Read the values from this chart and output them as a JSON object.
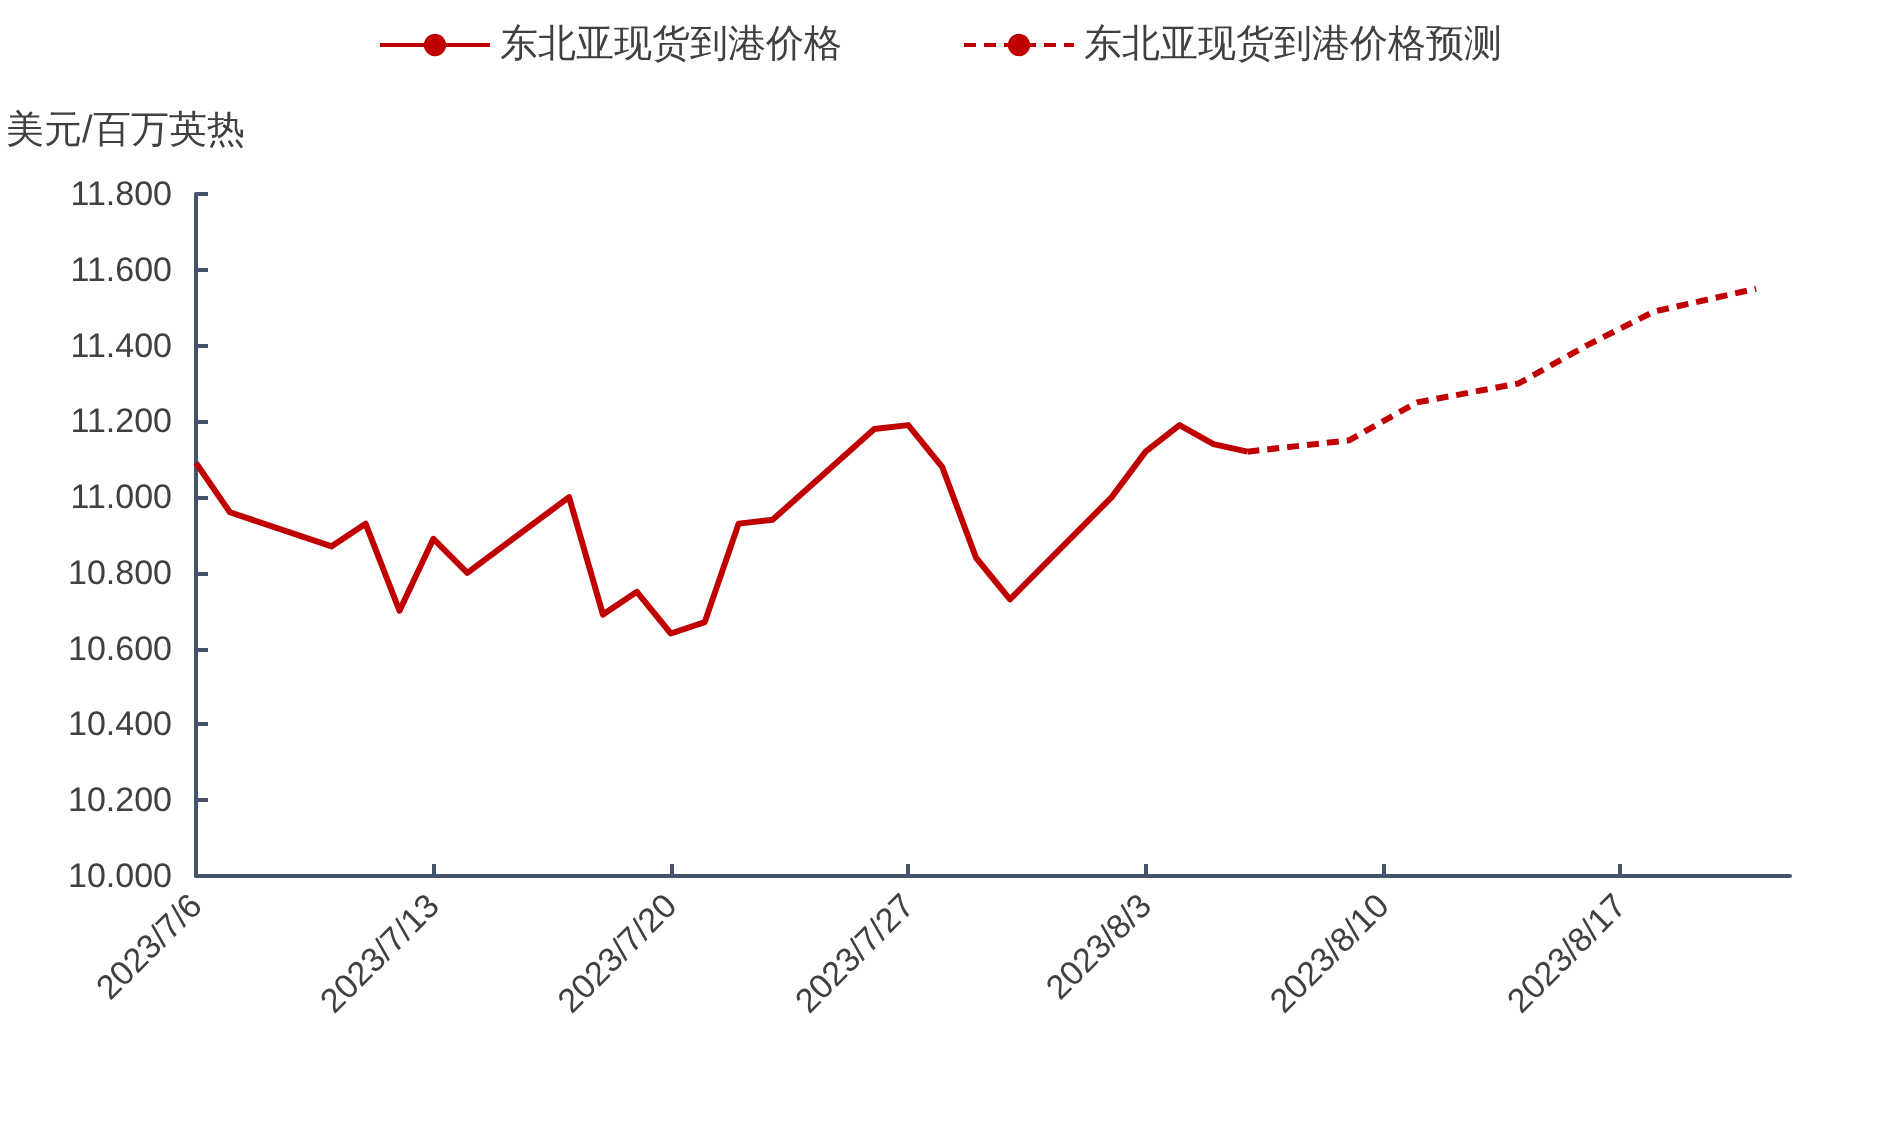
{
  "chart_data": {
    "type": "line",
    "ylabel": "美元/百万英热",
    "legend": "top",
    "grid": false,
    "marker": "none",
    "xlim": [
      "2023-07-06",
      "2023-08-22"
    ],
    "xticks": [
      {
        "value": "2023-07-06",
        "label": "2023/7/6"
      },
      {
        "value": "2023-07-13",
        "label": "2023/7/13"
      },
      {
        "value": "2023-07-20",
        "label": "2023/7/20"
      },
      {
        "value": "2023-07-27",
        "label": "2023/7/27"
      },
      {
        "value": "2023-08-03",
        "label": "2023/8/3"
      },
      {
        "value": "2023-08-10",
        "label": "2023/8/10"
      },
      {
        "value": "2023-08-17",
        "label": "2023/8/17"
      }
    ],
    "ylim": [
      10,
      11.8
    ],
    "yticks": [
      {
        "value": 10,
        "label": "10.000"
      },
      {
        "value": 10.2,
        "label": "10.200"
      },
      {
        "value": 10.4,
        "label": "10.400"
      },
      {
        "value": 10.6,
        "label": "10.600"
      },
      {
        "value": 10.8,
        "label": "10.800"
      },
      {
        "value": 11,
        "label": "11.000"
      },
      {
        "value": 11.2,
        "label": "11.200"
      },
      {
        "value": 11.4,
        "label": "11.400"
      },
      {
        "value": 11.6,
        "label": "11.600"
      },
      {
        "value": 11.8,
        "label": "11.800"
      }
    ],
    "series": [
      {
        "name": "东北亚现货到港价格",
        "color": "#c00000",
        "line_style": "solid",
        "x": [
          "2023-07-06",
          "2023-07-07",
          "2023-07-10",
          "2023-07-11",
          "2023-07-12",
          "2023-07-13",
          "2023-07-14",
          "2023-07-17",
          "2023-07-18",
          "2023-07-19",
          "2023-07-20",
          "2023-07-21",
          "2023-07-22",
          "2023-07-23",
          "2023-07-26",
          "2023-07-27",
          "2023-07-28",
          "2023-07-29",
          "2023-07-30",
          "2023-08-02",
          "2023-08-03",
          "2023-08-04",
          "2023-08-05",
          "2023-08-06"
        ],
        "values": [
          11.09,
          10.96,
          10.87,
          10.93,
          10.7,
          10.89,
          10.8,
          11.0,
          10.69,
          10.75,
          10.64,
          10.67,
          10.93,
          10.94,
          11.18,
          11.19,
          11.08,
          10.84,
          10.73,
          11.0,
          11.12,
          11.19,
          11.14,
          11.12
        ]
      },
      {
        "name": "东北亚现货到港价格预测",
        "color": "#c00000",
        "line_style": "dashed",
        "x": [
          "2023-08-06",
          "2023-08-09",
          "2023-08-11",
          "2023-08-14",
          "2023-08-16",
          "2023-08-18",
          "2023-08-21"
        ],
        "values": [
          11.12,
          11.15,
          11.25,
          11.3,
          11.4,
          11.49,
          11.55
        ]
      }
    ]
  }
}
